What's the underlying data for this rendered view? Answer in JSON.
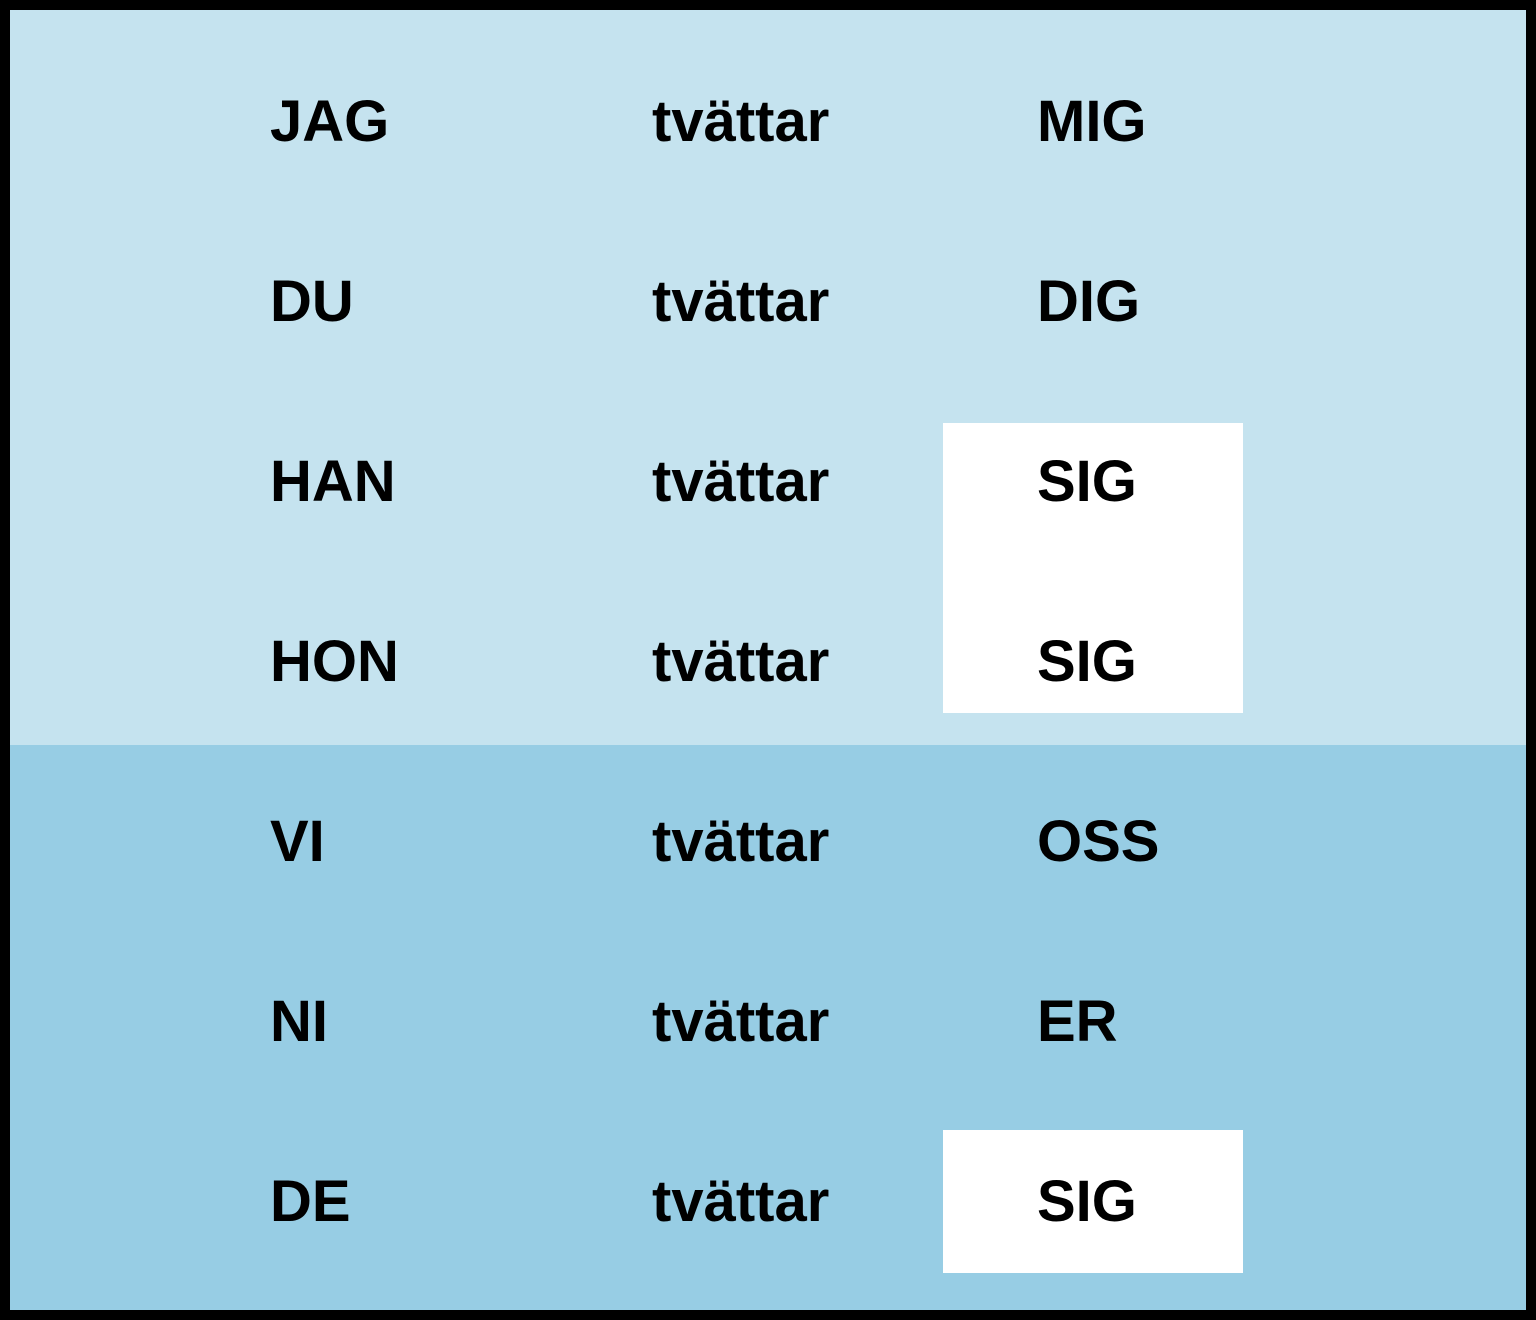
{
  "table": {
    "rows": [
      [
        "JAG",
        "tvättar",
        "MIG"
      ],
      [
        "DU",
        "tvättar",
        "DIG"
      ],
      [
        "HAN",
        "tvättar",
        "SIG"
      ],
      [
        "HON",
        "tvättar",
        "SIG"
      ],
      [
        "VI",
        "tvättar",
        "OSS"
      ],
      [
        "NI",
        "tvättar",
        "ER"
      ],
      [
        "DE",
        "tvättar",
        "SIG"
      ]
    ]
  }
}
